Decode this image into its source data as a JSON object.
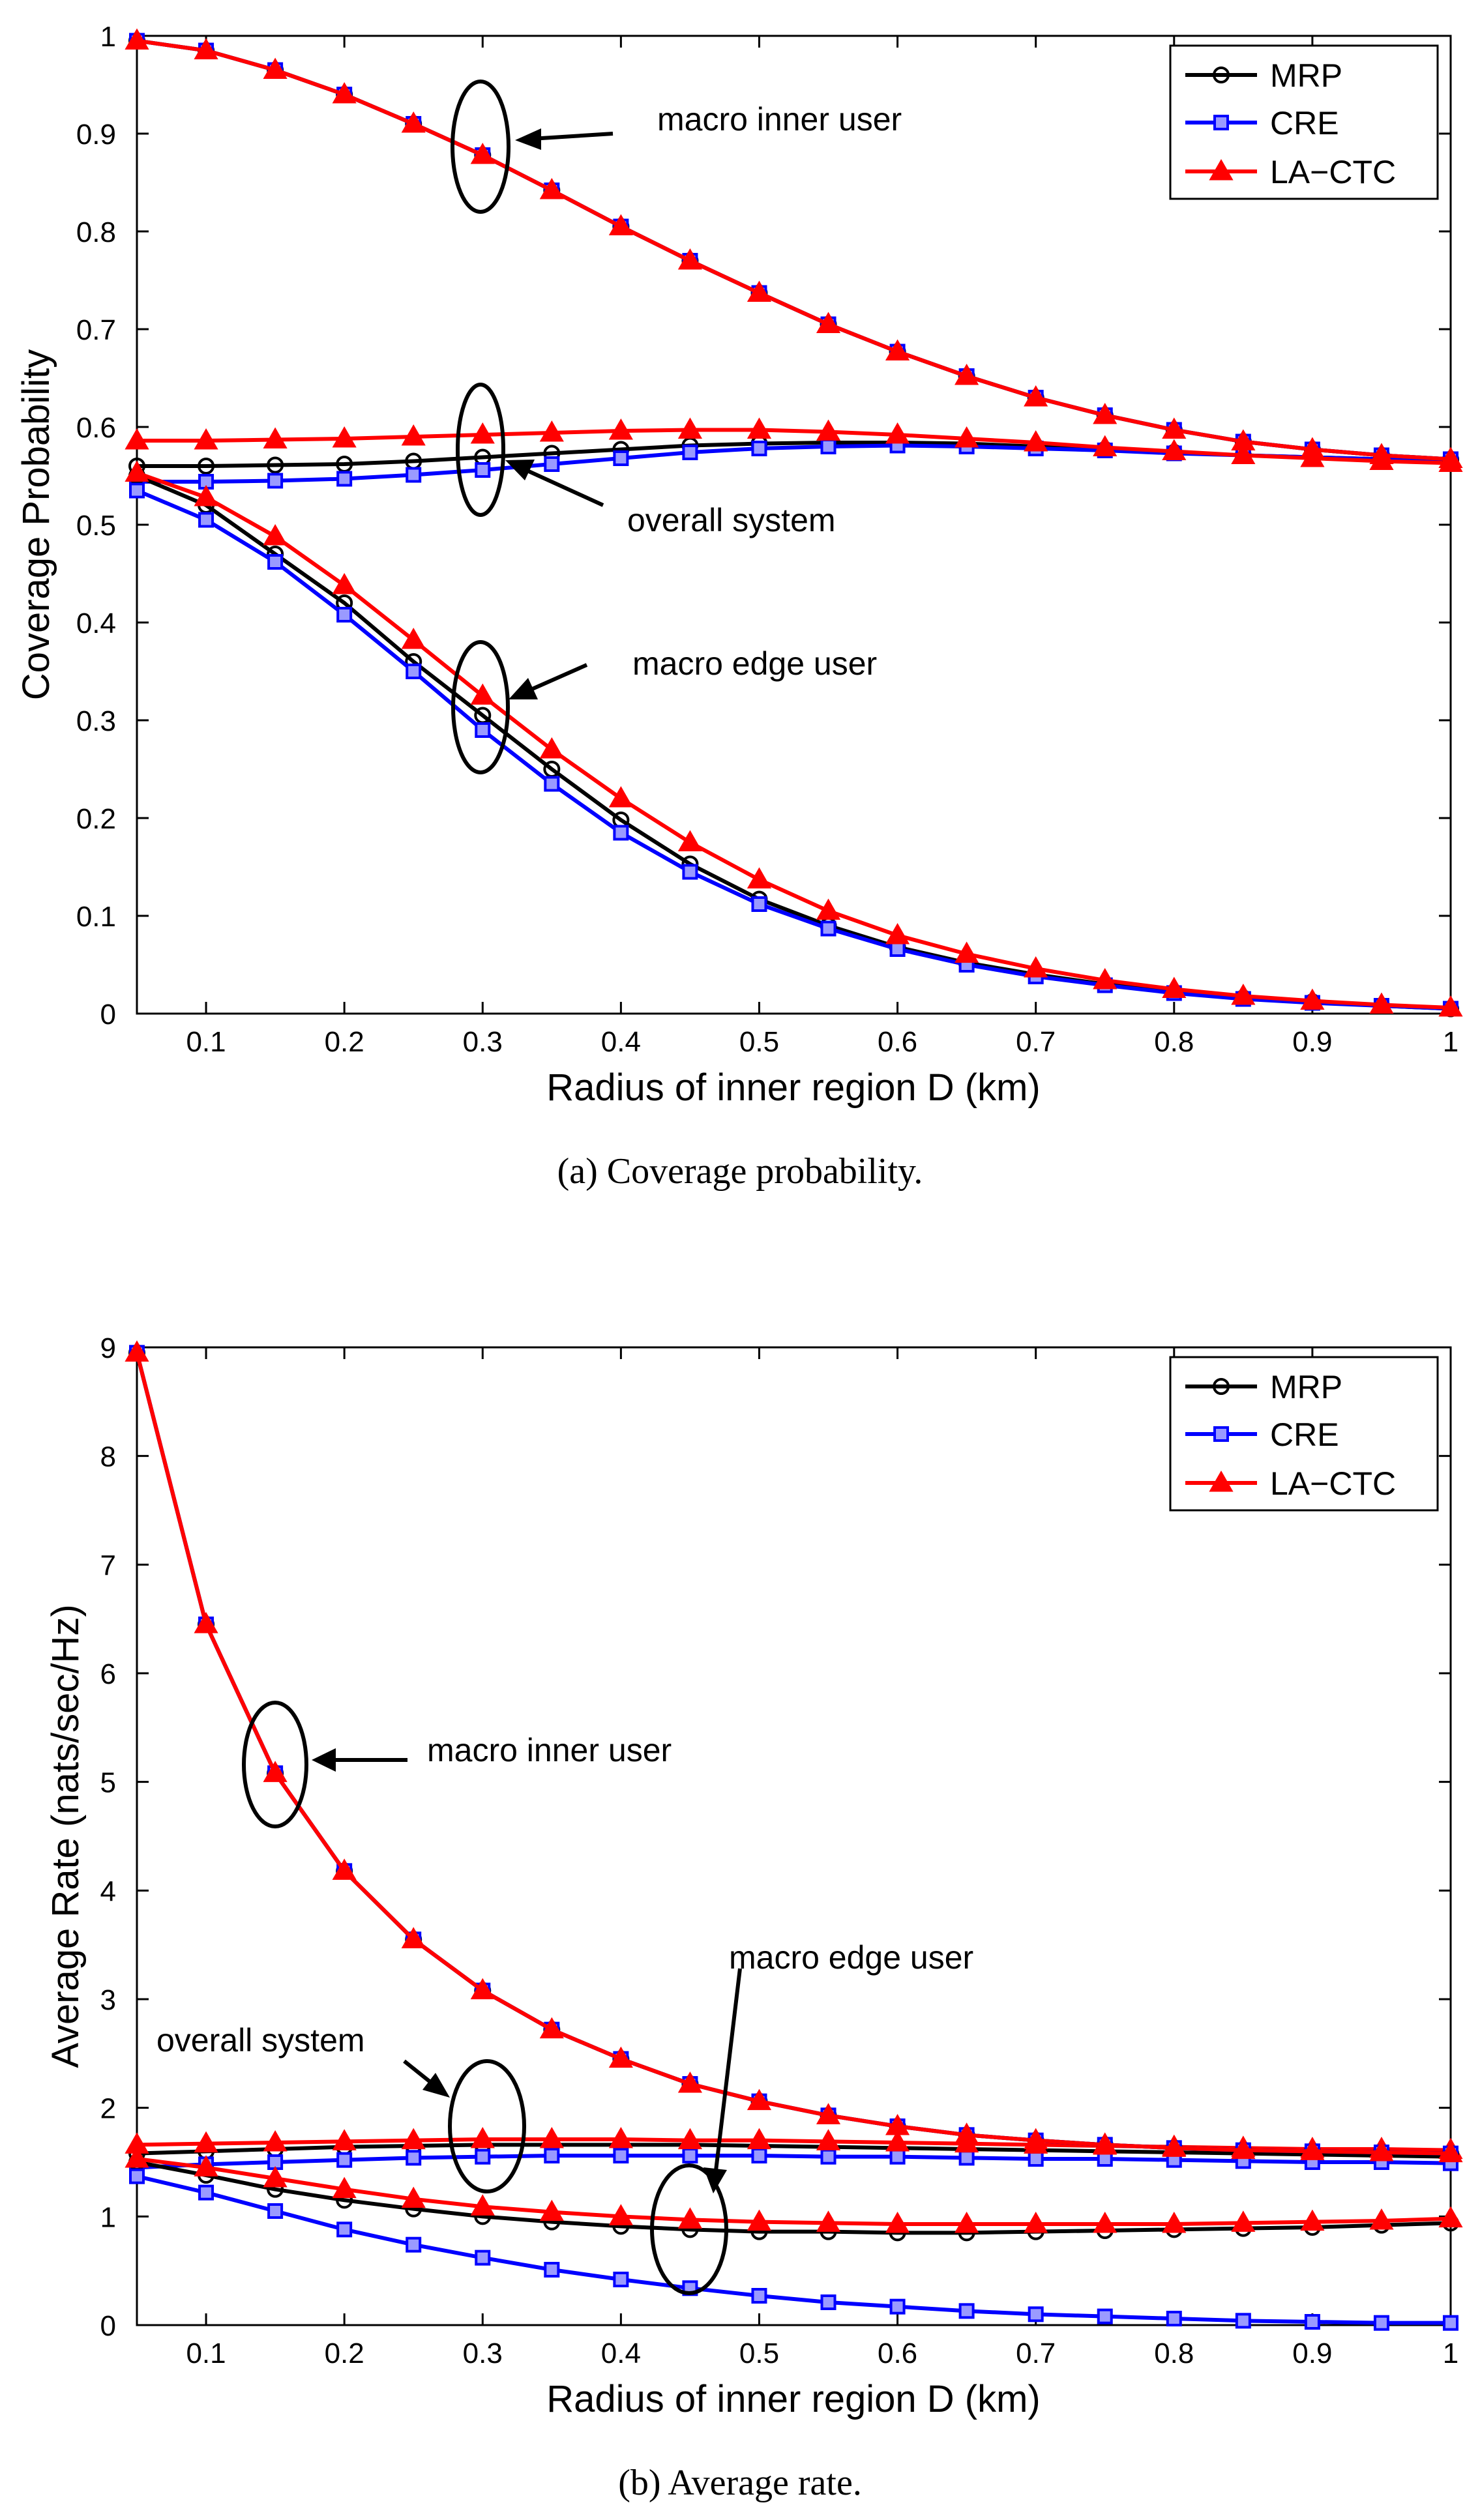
{
  "colors": {
    "MRP": "#000000",
    "CRE": "#0000ff",
    "LA-CTC": "#ff0000"
  },
  "chart_data": [
    {
      "type": "line",
      "caption": "(a)  Coverage probability.",
      "xlabel": "Radius of inner region D (km)",
      "ylabel": "Coverage Probability",
      "xlim": [
        0.05,
        1
      ],
      "ylim": [
        0,
        1
      ],
      "xticks": [
        0.1,
        0.2,
        0.3,
        0.4,
        0.5,
        0.6,
        0.7,
        0.8,
        0.9,
        1
      ],
      "xtick_labels": [
        "0.1",
        "0.2",
        "0.3",
        "0.4",
        "0.5",
        "0.6",
        "0.7",
        "0.8",
        "0.9",
        "1"
      ],
      "yticks": [
        0,
        0.1,
        0.2,
        0.3,
        0.4,
        0.5,
        0.6,
        0.7,
        0.8,
        0.9,
        1
      ],
      "ytick_labels": [
        "0",
        "0.1",
        "0.2",
        "0.3",
        "0.4",
        "0.5",
        "0.6",
        "0.7",
        "0.8",
        "0.9",
        "1"
      ],
      "legend": {
        "position": "top-right",
        "entries": [
          "MRP",
          "CRE",
          "LA−CTC"
        ]
      },
      "x": [
        0.05,
        0.1,
        0.15,
        0.2,
        0.25,
        0.3,
        0.35,
        0.4,
        0.45,
        0.5,
        0.55,
        0.6,
        0.65,
        0.7,
        0.75,
        0.8,
        0.85,
        0.9,
        0.95,
        1.0
      ],
      "series": [
        {
          "name": "MRP",
          "group": "inner",
          "values": [
            0.995,
            0.985,
            0.965,
            0.94,
            0.91,
            0.878,
            0.842,
            0.805,
            0.77,
            0.737,
            0.705,
            0.677,
            0.652,
            0.63,
            0.612,
            0.597,
            0.585,
            0.577,
            0.571,
            0.567
          ]
        },
        {
          "name": "CRE",
          "group": "inner",
          "values": [
            0.995,
            0.985,
            0.965,
            0.94,
            0.91,
            0.878,
            0.842,
            0.805,
            0.77,
            0.737,
            0.705,
            0.677,
            0.652,
            0.63,
            0.612,
            0.597,
            0.585,
            0.577,
            0.571,
            0.567
          ]
        },
        {
          "name": "LA-CTC",
          "group": "inner",
          "values": [
            0.995,
            0.985,
            0.965,
            0.94,
            0.91,
            0.878,
            0.842,
            0.805,
            0.77,
            0.737,
            0.705,
            0.677,
            0.652,
            0.63,
            0.612,
            0.597,
            0.585,
            0.577,
            0.571,
            0.567
          ]
        },
        {
          "name": "MRP",
          "group": "overall",
          "values": [
            0.56,
            0.56,
            0.561,
            0.562,
            0.565,
            0.569,
            0.573,
            0.577,
            0.581,
            0.583,
            0.584,
            0.584,
            0.583,
            0.58,
            0.577,
            0.574,
            0.571,
            0.569,
            0.567,
            0.565
          ]
        },
        {
          "name": "CRE",
          "group": "overall",
          "values": [
            0.544,
            0.544,
            0.545,
            0.547,
            0.551,
            0.556,
            0.562,
            0.568,
            0.574,
            0.578,
            0.58,
            0.581,
            0.58,
            0.578,
            0.576,
            0.573,
            0.571,
            0.569,
            0.567,
            0.565
          ]
        },
        {
          "name": "LA-CTC",
          "group": "overall",
          "values": [
            0.586,
            0.586,
            0.587,
            0.588,
            0.59,
            0.592,
            0.594,
            0.596,
            0.597,
            0.597,
            0.595,
            0.592,
            0.588,
            0.584,
            0.579,
            0.575,
            0.571,
            0.568,
            0.565,
            0.563
          ]
        },
        {
          "name": "MRP",
          "group": "edge",
          "values": [
            0.55,
            0.52,
            0.47,
            0.42,
            0.36,
            0.305,
            0.25,
            0.198,
            0.153,
            0.117,
            0.09,
            0.068,
            0.052,
            0.04,
            0.03,
            0.022,
            0.016,
            0.012,
            0.008,
            0.005
          ]
        },
        {
          "name": "CRE",
          "group": "edge",
          "values": [
            0.535,
            0.505,
            0.462,
            0.408,
            0.35,
            0.29,
            0.235,
            0.185,
            0.145,
            0.112,
            0.087,
            0.066,
            0.05,
            0.038,
            0.029,
            0.021,
            0.015,
            0.011,
            0.008,
            0.005
          ]
        },
        {
          "name": "LA-CTC",
          "group": "edge",
          "values": [
            0.553,
            0.528,
            0.488,
            0.438,
            0.382,
            0.325,
            0.27,
            0.22,
            0.175,
            0.137,
            0.105,
            0.08,
            0.061,
            0.046,
            0.034,
            0.025,
            0.018,
            0.013,
            0.009,
            0.006
          ]
        }
      ],
      "annotations": [
        {
          "label": "macro inner user",
          "series_group": "inner",
          "x": 0.3,
          "y": 0.88
        },
        {
          "label": "overall system",
          "series_group": "overall",
          "x": 0.3,
          "y": 0.58
        },
        {
          "label": "macro edge user",
          "series_group": "edge",
          "x": 0.3,
          "y": 0.31
        }
      ]
    },
    {
      "type": "line",
      "caption": "(b)  Average rate.",
      "xlabel": "Radius of inner region D (km)",
      "ylabel": "Average Rate (nats/sec/Hz)",
      "xlim": [
        0.05,
        1
      ],
      "ylim": [
        0,
        9
      ],
      "xticks": [
        0.1,
        0.2,
        0.3,
        0.4,
        0.5,
        0.6,
        0.7,
        0.8,
        0.9,
        1
      ],
      "xtick_labels": [
        "0.1",
        "0.2",
        "0.3",
        "0.4",
        "0.5",
        "0.6",
        "0.7",
        "0.8",
        "0.9",
        "1"
      ],
      "yticks": [
        0,
        1,
        2,
        3,
        4,
        5,
        6,
        7,
        8,
        9
      ],
      "ytick_labels": [
        "0",
        "1",
        "2",
        "3",
        "4",
        "5",
        "6",
        "7",
        "8",
        "9"
      ],
      "legend": {
        "position": "top-right",
        "entries": [
          "MRP",
          "CRE",
          "LA−CTC"
        ]
      },
      "x": [
        0.05,
        0.1,
        0.15,
        0.2,
        0.25,
        0.3,
        0.35,
        0.4,
        0.45,
        0.5,
        0.55,
        0.6,
        0.65,
        0.7,
        0.75,
        0.8,
        0.85,
        0.9,
        0.95,
        1.0
      ],
      "series": [
        {
          "name": "MRP",
          "group": "inner",
          "values": [
            8.95,
            6.45,
            5.08,
            4.18,
            3.55,
            3.08,
            2.72,
            2.45,
            2.22,
            2.06,
            1.93,
            1.83,
            1.75,
            1.7,
            1.66,
            1.63,
            1.61,
            1.6,
            1.59,
            1.58
          ]
        },
        {
          "name": "CRE",
          "group": "inner",
          "values": [
            8.95,
            6.45,
            5.08,
            4.18,
            3.55,
            3.08,
            2.72,
            2.45,
            2.22,
            2.06,
            1.93,
            1.83,
            1.75,
            1.7,
            1.66,
            1.63,
            1.61,
            1.6,
            1.59,
            1.58
          ]
        },
        {
          "name": "LA-CTC",
          "group": "inner",
          "values": [
            8.95,
            6.45,
            5.08,
            4.18,
            3.55,
            3.08,
            2.72,
            2.45,
            2.22,
            2.06,
            1.93,
            1.83,
            1.75,
            1.7,
            1.66,
            1.63,
            1.61,
            1.6,
            1.59,
            1.58
          ]
        },
        {
          "name": "MRP",
          "group": "overall",
          "values": [
            1.58,
            1.6,
            1.62,
            1.64,
            1.65,
            1.66,
            1.66,
            1.66,
            1.66,
            1.65,
            1.64,
            1.63,
            1.62,
            1.61,
            1.6,
            1.59,
            1.58,
            1.57,
            1.56,
            1.55
          ]
        },
        {
          "name": "CRE",
          "group": "overall",
          "values": [
            1.45,
            1.48,
            1.5,
            1.52,
            1.54,
            1.55,
            1.56,
            1.56,
            1.56,
            1.56,
            1.55,
            1.55,
            1.54,
            1.53,
            1.53,
            1.52,
            1.51,
            1.5,
            1.5,
            1.49
          ]
        },
        {
          "name": "LA-CTC",
          "group": "overall",
          "values": [
            1.66,
            1.67,
            1.68,
            1.69,
            1.7,
            1.71,
            1.71,
            1.71,
            1.7,
            1.7,
            1.69,
            1.68,
            1.67,
            1.66,
            1.65,
            1.64,
            1.63,
            1.62,
            1.62,
            1.61
          ]
        },
        {
          "name": "MRP",
          "group": "edge",
          "values": [
            1.5,
            1.38,
            1.25,
            1.15,
            1.07,
            1.0,
            0.95,
            0.91,
            0.88,
            0.86,
            0.86,
            0.85,
            0.85,
            0.86,
            0.87,
            0.88,
            0.89,
            0.9,
            0.92,
            0.94
          ]
        },
        {
          "name": "CRE",
          "group": "edge",
          "values": [
            1.37,
            1.22,
            1.05,
            0.88,
            0.74,
            0.62,
            0.51,
            0.42,
            0.34,
            0.27,
            0.21,
            0.17,
            0.13,
            0.1,
            0.08,
            0.06,
            0.04,
            0.03,
            0.02,
            0.02
          ]
        },
        {
          "name": "LA-CTC",
          "group": "edge",
          "values": [
            1.53,
            1.45,
            1.35,
            1.25,
            1.16,
            1.09,
            1.04,
            1.0,
            0.97,
            0.95,
            0.94,
            0.93,
            0.93,
            0.93,
            0.93,
            0.93,
            0.94,
            0.95,
            0.96,
            0.98
          ]
        }
      ],
      "annotations": [
        {
          "label": "macro inner user",
          "series_group": "inner",
          "x": 0.15,
          "y": 5.1
        },
        {
          "label": "overall system",
          "series_group": "overall",
          "x": 0.3,
          "y": 1.75
        },
        {
          "label": "macro edge user",
          "series_group": "edge",
          "x": 0.45,
          "y": 0.9
        }
      ]
    }
  ]
}
